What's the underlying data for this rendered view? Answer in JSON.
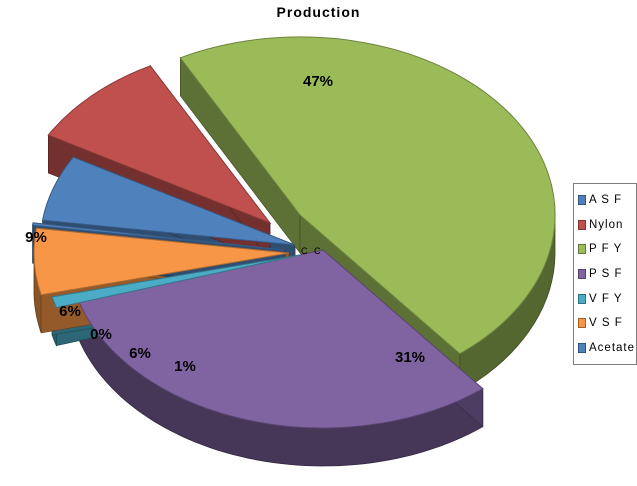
{
  "chart_data": {
    "type": "pie",
    "title": "Production",
    "categories": [
      "ASF",
      "Nylon",
      "PFY",
      "PSF",
      "VFY",
      "VSF",
      "Acetate"
    ],
    "values": [
      6,
      9,
      47,
      31,
      1,
      6,
      0
    ],
    "data_labels": [
      "6%",
      "9%",
      "47%",
      "31%",
      "1%",
      "6%",
      "0%"
    ],
    "legend": [
      "A S F",
      "Nylon",
      "P F Y",
      "P S F",
      "V F Y",
      "V S F",
      "Acetate"
    ],
    "colors": [
      "#4f81bd",
      "#c0504d",
      "#9bbb59",
      "#8064a2",
      "#4bacc6",
      "#f79646",
      "#4f81bd"
    ],
    "exploded": true,
    "three_d": true,
    "legend_position": "right"
  },
  "stray_labels": [
    "C",
    "C"
  ]
}
